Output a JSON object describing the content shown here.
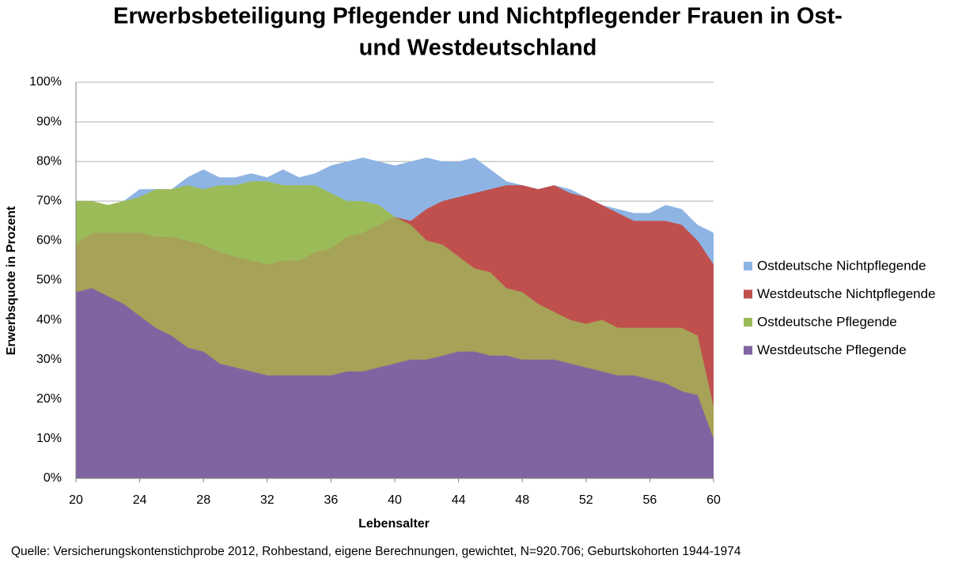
{
  "chart_data": {
    "type": "area",
    "title": [
      "Erwerbsbeteiligung Pflegender und Nichtpflegender Frauen in Ost-",
      "und Westdeutschland"
    ],
    "xlabel": "Lebensalter",
    "ylabel": "Erwerbsquote in Prozent",
    "source": "Quelle: Versicherungskontenstichprobe 2012, Rohbestand, eigene Berechnungen, gewichtet, N=920.706; Geburtskohorten 1944-1974",
    "x": [
      20,
      21,
      22,
      23,
      24,
      25,
      26,
      27,
      28,
      29,
      30,
      31,
      32,
      33,
      34,
      35,
      36,
      37,
      38,
      39,
      40,
      41,
      42,
      43,
      44,
      45,
      46,
      47,
      48,
      49,
      50,
      51,
      52,
      53,
      54,
      55,
      56,
      57,
      58,
      59,
      60
    ],
    "xlim": [
      20,
      60
    ],
    "xticks": [
      20,
      24,
      28,
      32,
      36,
      40,
      44,
      48,
      52,
      56,
      60
    ],
    "ylim": [
      0,
      100
    ],
    "yticks": [
      {
        "value": 0,
        "label": "0%"
      },
      {
        "value": 10,
        "label": "10%"
      },
      {
        "value": 20,
        "label": "20%"
      },
      {
        "value": 30,
        "label": "30%"
      },
      {
        "value": 40,
        "label": "40%"
      },
      {
        "value": 50,
        "label": "50%"
      },
      {
        "value": 60,
        "label": "60%"
      },
      {
        "value": 70,
        "label": "70%"
      },
      {
        "value": 80,
        "label": "80%"
      },
      {
        "value": 90,
        "label": "90%"
      },
      {
        "value": 100,
        "label": "100%"
      }
    ],
    "grid": true,
    "legend": "right",
    "series": [
      {
        "name": "Ostdeutsche Nichtpflegende",
        "color": "#8eb4e3",
        "values": [
          67,
          68,
          68,
          70,
          73,
          73,
          73,
          76,
          78,
          76,
          76,
          77,
          76,
          78,
          76,
          77,
          79,
          80,
          81,
          80,
          79,
          80,
          81,
          80,
          80,
          81,
          78,
          75,
          74,
          73,
          74,
          73,
          71,
          69,
          68,
          67,
          67,
          69,
          68,
          64,
          62
        ]
      },
      {
        "name": "Westdeutsche Nichtpflegende",
        "color": "#c0504d",
        "values": [
          59,
          62,
          62,
          62,
          62,
          61,
          61,
          60,
          59,
          57,
          56,
          55,
          54,
          55,
          55,
          57,
          58,
          61,
          62,
          64,
          66,
          65,
          68,
          70,
          71,
          72,
          73,
          74,
          74,
          73,
          74,
          72,
          71,
          69,
          67,
          65,
          65,
          65,
          64,
          60,
          54
        ]
      },
      {
        "name": "Ostdeutsche Pflegende",
        "color": "#9bbb59",
        "values": [
          70,
          70,
          69,
          70,
          71,
          73,
          73,
          74,
          73,
          74,
          74,
          75,
          75,
          74,
          74,
          74,
          72,
          70,
          70,
          69,
          66,
          64,
          60,
          59,
          56,
          53,
          52,
          48,
          47,
          44,
          42,
          40,
          39,
          40,
          38,
          38,
          38,
          38,
          38,
          36,
          18
        ]
      },
      {
        "name": "Westdeutsche Pflegende",
        "color": "#8064a2",
        "values": [
          47,
          48,
          46,
          44,
          41,
          38,
          36,
          33,
          32,
          29,
          28,
          27,
          26,
          26,
          26,
          26,
          26,
          27,
          27,
          28,
          29,
          30,
          30,
          31,
          32,
          32,
          31,
          31,
          30,
          30,
          30,
          29,
          28,
          27,
          26,
          26,
          25,
          24,
          22,
          21,
          10
        ]
      }
    ]
  }
}
